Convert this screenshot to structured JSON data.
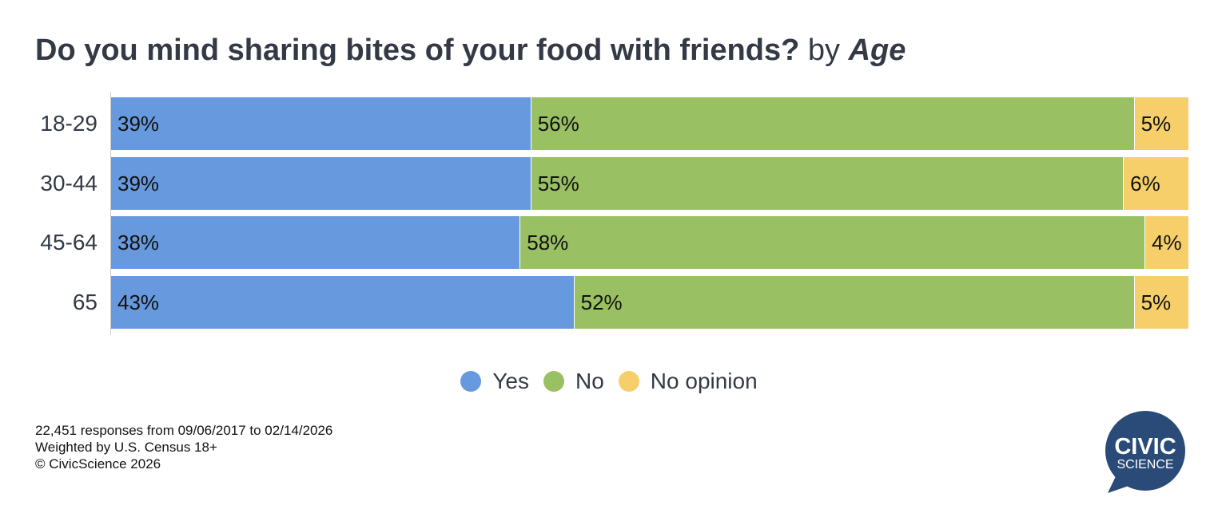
{
  "title": {
    "question": "Do you mind sharing bites of your food with friends?",
    "by": "by",
    "group": "Age"
  },
  "colors": {
    "Yes": "#6699dd",
    "No": "#99c062",
    "No opinion": "#f6cf6b"
  },
  "chart_data": {
    "type": "bar",
    "orientation": "horizontal-stacked-100",
    "title": "Do you mind sharing bites of your food with friends? by Age",
    "categories": [
      "18-29",
      "30-44",
      "45-64",
      "65"
    ],
    "series": [
      {
        "name": "Yes",
        "values": [
          39,
          39,
          38,
          43
        ]
      },
      {
        "name": "No",
        "values": [
          56,
          55,
          58,
          52
        ]
      },
      {
        "name": "No opinion",
        "values": [
          5,
          6,
          4,
          5
        ]
      }
    ],
    "xlim": [
      0,
      100
    ],
    "legend": "bottom-center"
  },
  "footer": [
    "22,451 responses from 09/06/2017 to 02/14/2026",
    "Weighted by U.S. Census 18+",
    "© CivicScience 2026"
  ],
  "logo": {
    "line1": "CIVIC",
    "line2": "SCIENCE"
  }
}
